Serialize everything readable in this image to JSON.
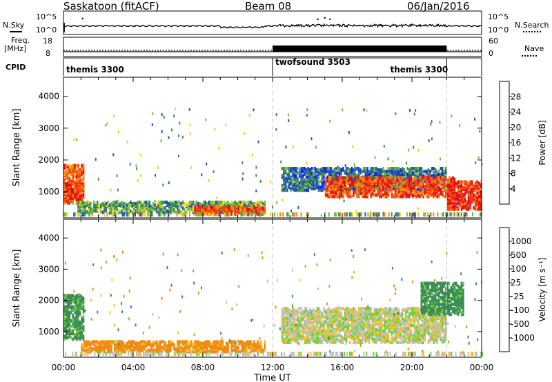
{
  "header": {
    "title": "Saskatoon (fitACF)",
    "beam": "Beam 08",
    "date": "06/Jan/2016"
  },
  "top_panels": {
    "nsky_label": "N.Sky",
    "nsearch_label": "N.Search",
    "nsky_ticks": [
      "10^5",
      "10^0"
    ],
    "nsearch_ticks": [
      "10^5",
      "10^0"
    ],
    "freq_label": "Freq.",
    "freq_unit": "[MHz]",
    "freq_ticks": [
      "18",
      "8"
    ],
    "nave_label": "Nave",
    "nave_ticks": [
      "60",
      "0"
    ],
    "cpid_label": "CPID"
  },
  "cpid_segments": [
    {
      "label": "themis 3300",
      "start_hour": 0,
      "end_hour": 12
    },
    {
      "label": "twofsound 3503",
      "start_hour": 12,
      "end_hour": 22
    },
    {
      "label": "themis 3300",
      "start_hour": 22,
      "end_hour": 24
    }
  ],
  "x_axis": {
    "label": "Time UT",
    "ticks": [
      "00:00",
      "04:00",
      "08:00",
      "12:00",
      "16:00",
      "20:00",
      "00:00"
    ]
  },
  "power_panel": {
    "ylabel": "Slant Range [km]",
    "yticks": [
      "1000",
      "2000",
      "3000",
      "4000"
    ],
    "colorbar_label": "Power [dB]",
    "colorbar_ticks": [
      "4",
      "8",
      "12",
      "16",
      "20",
      "24",
      "28"
    ],
    "colors": [
      "#1a1aff",
      "#2050c0",
      "#3c8c50",
      "#6dbf3a",
      "#e8d020",
      "#f08a10",
      "#ff4010",
      "#e01010"
    ]
  },
  "velocity_panel": {
    "ylabel": "Slant Range [km]",
    "yticks": [
      "1000",
      "2000",
      "3000",
      "4000"
    ],
    "colorbar_label": "Velocity [m s⁻¹]",
    "colorbar_ticks": [
      "1000",
      "500",
      "100",
      "25",
      "-25",
      "-100",
      "-500",
      "-1000"
    ],
    "colors": [
      "#2040c0",
      "#3c7ac8",
      "#3a8c50",
      "#6dd040",
      "#c0c0c0",
      "#f0c020",
      "#f08a10",
      "#ff4010",
      "#e00000"
    ]
  },
  "chart_data": {
    "type": "heatmap",
    "title": "Saskatoon (fitACF)",
    "xlabel": "Time UT",
    "ylabel": "Slant Range [km]",
    "xlim_hours": [
      0,
      24
    ],
    "ylim_km": [
      180,
      4600
    ],
    "series": [
      {
        "name": "Power [dB]",
        "regions": [
          {
            "t0": 0.0,
            "t1": 1.2,
            "r0": 600,
            "r1": 1800,
            "value": 24
          },
          {
            "t0": 0.1,
            "t1": 1.0,
            "r0": 700,
            "r1": 1300,
            "value": 28
          },
          {
            "t0": 0.8,
            "t1": 11.5,
            "r0": 300,
            "r1": 650,
            "value": 12
          },
          {
            "t0": 7.5,
            "t1": 11.5,
            "r0": 250,
            "r1": 500,
            "value": 26
          },
          {
            "t0": 12.5,
            "t1": 22.0,
            "r0": 1000,
            "r1": 1700,
            "value": 8
          },
          {
            "t0": 15.0,
            "t1": 22.5,
            "r0": 800,
            "r1": 1400,
            "value": 26
          },
          {
            "t0": 22.0,
            "t1": 24.0,
            "r0": 400,
            "r1": 1300,
            "value": 28
          }
        ]
      },
      {
        "name": "Velocity",
        "regions": [
          {
            "t0": 0.0,
            "t1": 1.2,
            "r0": 700,
            "r1": 2100,
            "value": 100
          },
          {
            "t0": 1.0,
            "t1": 11.5,
            "r0": 300,
            "r1": 650,
            "value": -100
          },
          {
            "t0": 12.5,
            "t1": 22.0,
            "r0": 600,
            "r1": 1700,
            "value": 0
          },
          {
            "t0": 20.5,
            "t1": 23.0,
            "r0": 1500,
            "r1": 2500,
            "value": 100
          }
        ]
      }
    ]
  }
}
